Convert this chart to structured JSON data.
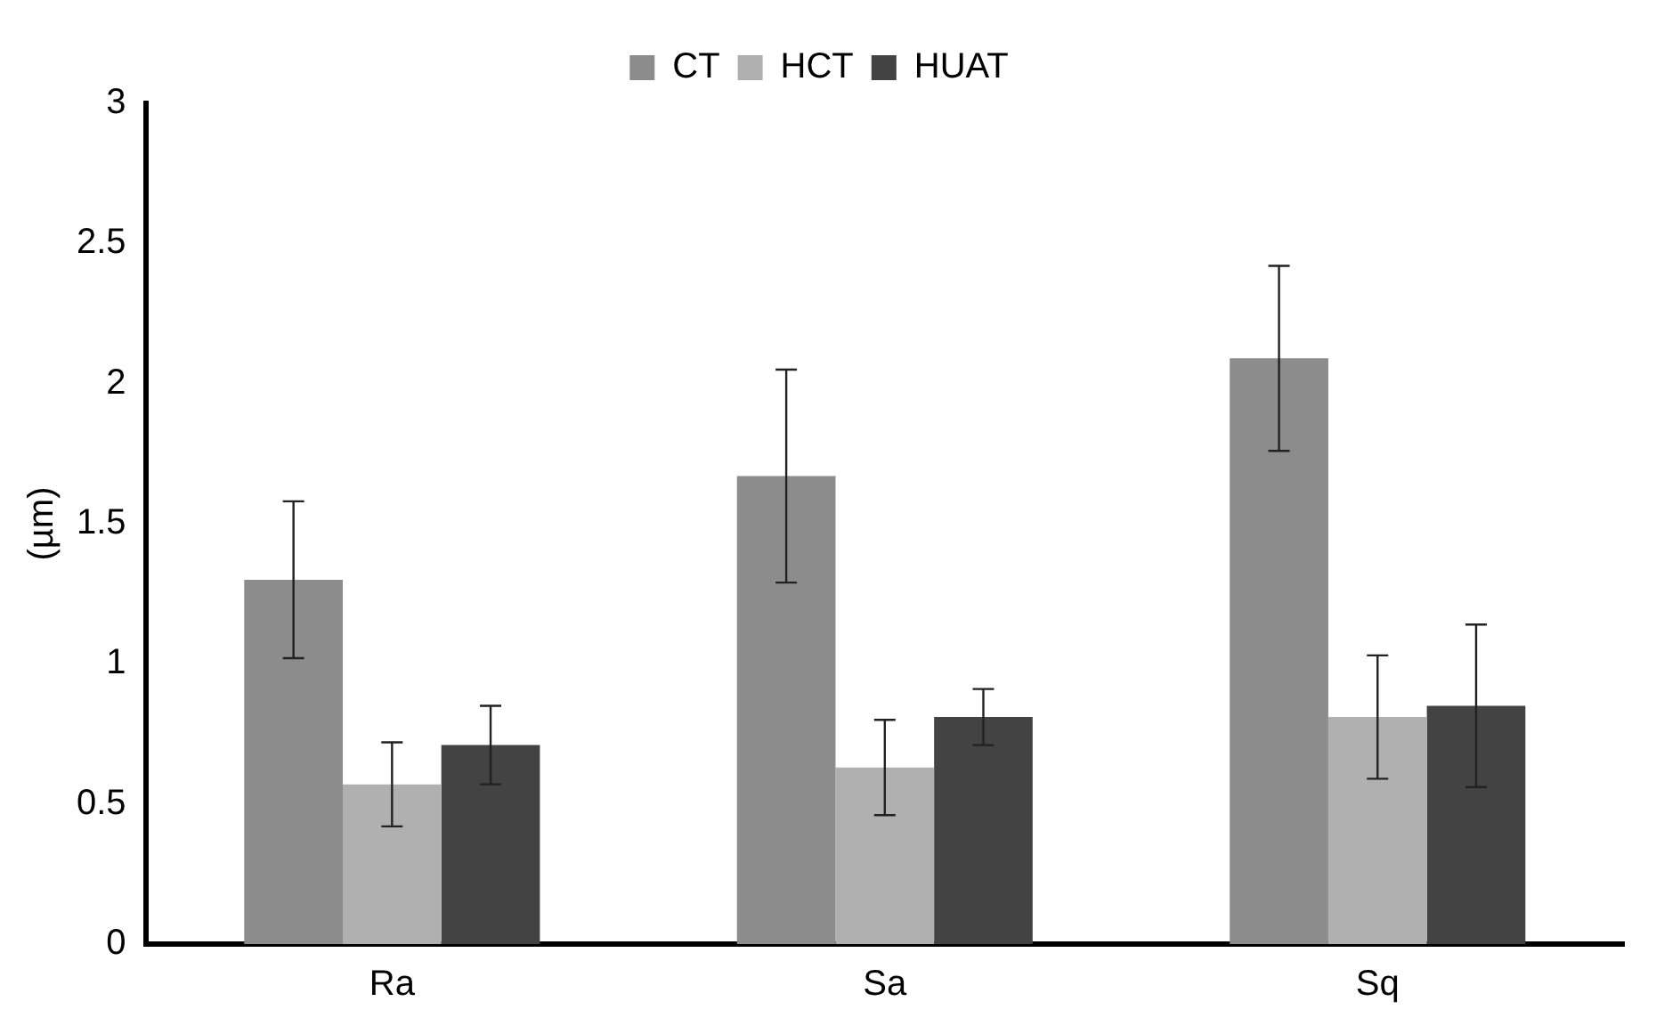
{
  "chart_data": {
    "type": "bar",
    "ylabel": "(µm)",
    "categories": [
      "Ra",
      "Sa",
      "Sq"
    ],
    "series": [
      {
        "name": "CT",
        "color": "#8c8c8c",
        "values": [
          1.3,
          1.67,
          2.09
        ],
        "errors": [
          0.28,
          0.38,
          0.33
        ]
      },
      {
        "name": "HCT",
        "color": "#b0b0b0",
        "values": [
          0.57,
          0.63,
          0.81
        ],
        "errors": [
          0.15,
          0.17,
          0.22
        ]
      },
      {
        "name": "HUAT",
        "color": "#434343",
        "values": [
          0.71,
          0.81,
          0.85
        ],
        "errors": [
          0.14,
          0.1,
          0.29
        ]
      }
    ],
    "ylim": [
      0,
      3
    ],
    "yticks": [
      0,
      0.5,
      1,
      1.5,
      2,
      2.5,
      3
    ],
    "grid": false,
    "legend": "top"
  }
}
